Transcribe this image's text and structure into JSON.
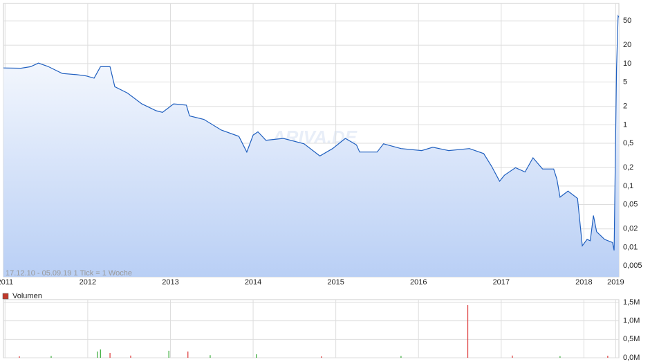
{
  "chart_data": {
    "type": "line",
    "subtitle": "17.12.10 - 05.09.19   1 Tick = 1 Woche",
    "watermark": "ARIVA.DE",
    "log_scale": true,
    "grid": true,
    "color": "#1f5fbf",
    "x": [
      0,
      11,
      17,
      22,
      28,
      37,
      46,
      52,
      57,
      61,
      67,
      70,
      78,
      87,
      96,
      100,
      107,
      115,
      117,
      126,
      137,
      148,
      153,
      157,
      160,
      165,
      176,
      189,
      199,
      207,
      215,
      222,
      224,
      235,
      239,
      250,
      263,
      270,
      280,
      293,
      302,
      307,
      312,
      315,
      322,
      328,
      333,
      339,
      346,
      348,
      350,
      355,
      361,
      364,
      367,
      369,
      371,
      373,
      378,
      383,
      384,
      385.5,
      386.5,
      387
    ],
    "values": [
      8.5,
      8.4,
      8.9,
      10.2,
      9.0,
      6.9,
      6.6,
      6.3,
      5.8,
      8.9,
      8.9,
      4.2,
      3.3,
      2.2,
      1.7,
      1.6,
      2.2,
      2.1,
      1.4,
      1.23,
      0.82,
      0.65,
      0.36,
      0.68,
      0.77,
      0.56,
      0.6,
      0.49,
      0.31,
      0.41,
      0.6,
      0.47,
      0.36,
      0.36,
      0.49,
      0.41,
      0.38,
      0.43,
      0.38,
      0.41,
      0.34,
      0.21,
      0.12,
      0.15,
      0.2,
      0.17,
      0.29,
      0.19,
      0.19,
      0.13,
      0.066,
      0.083,
      0.063,
      0.0106,
      0.0135,
      0.0128,
      0.033,
      0.018,
      0.0135,
      0.012,
      0.0089,
      8.3,
      60,
      57
    ],
    "xlim": [
      0,
      387
    ],
    "xticks": [
      {
        "value": 1,
        "label": "2011"
      },
      {
        "value": 53,
        "label": "2012"
      },
      {
        "value": 105,
        "label": "2013"
      },
      {
        "value": 157,
        "label": "2014"
      },
      {
        "value": 209,
        "label": "2015"
      },
      {
        "value": 261,
        "label": "2016"
      },
      {
        "value": 313,
        "label": "2017"
      },
      {
        "value": 365,
        "label": "2018"
      },
      {
        "value": 385,
        "label": "2019"
      }
    ],
    "ylim": [
      0.0033,
      96
    ],
    "yticks": [
      {
        "value": 0.005,
        "label": "0,005"
      },
      {
        "value": 0.01,
        "label": "0,01"
      },
      {
        "value": 0.02,
        "label": "0,02"
      },
      {
        "value": 0.05,
        "label": "0,05"
      },
      {
        "value": 0.1,
        "label": "0,1"
      },
      {
        "value": 0.2,
        "label": "0,2"
      },
      {
        "value": 0.5,
        "label": "0,5"
      },
      1,
      2,
      5,
      10,
      20,
      50
    ],
    "volume": {
      "name": "Volumen",
      "color": "#c0392b",
      "x": [
        10,
        30,
        59,
        61,
        67,
        80,
        104,
        116,
        130,
        159,
        200,
        250,
        292,
        320,
        350,
        380
      ],
      "values": [
        40000,
        50000,
        170000,
        225000,
        130000,
        60000,
        190000,
        170000,
        70000,
        95000,
        40000,
        50000,
        1425000,
        60000,
        45000,
        55000
      ],
      "bar_colors": [
        "#d33",
        "#3a3",
        "#3a3",
        "#3a3",
        "#d33",
        "#d33",
        "#3a3",
        "#d33",
        "#3a3",
        "#3a3",
        "#d33",
        "#3a3",
        "#d33",
        "#d33",
        "#3a3",
        "#d33"
      ],
      "ylim": [
        0,
        1575000
      ],
      "yticks": [
        {
          "value": 0,
          "label": "0,0M"
        },
        {
          "value": 500000,
          "label": "0,5M"
        },
        {
          "value": 1000000,
          "label": "1,0M"
        },
        {
          "value": 1500000,
          "label": "1,5M"
        }
      ]
    }
  }
}
